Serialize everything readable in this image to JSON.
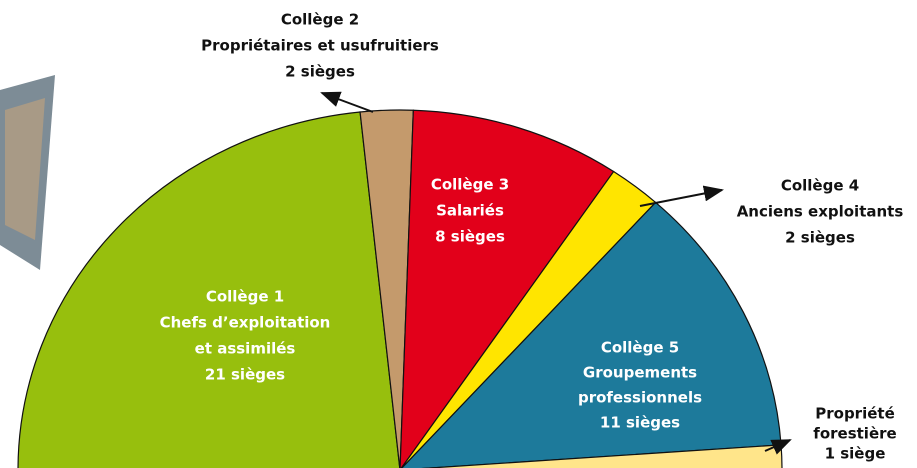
{
  "chart_data": {
    "type": "semi-pie",
    "labels": [
      [
        "Collège 1",
        "Chefs d’exploitation",
        "et assimilés"
      ],
      [
        "Collège 2",
        "Propriétaires et usufruitiers"
      ],
      [
        "Collège 3",
        "Salariés"
      ],
      [
        "Collège 4",
        "Anciens exploitants"
      ],
      [
        "Collège 5",
        "Groupements",
        "professionnels"
      ],
      [
        "Propriété",
        "forestière"
      ]
    ],
    "values": [
      21,
      2,
      8,
      2,
      11,
      1
    ],
    "value_labels": [
      "21 sièges",
      "2 sièges",
      "8 sièges",
      "2 sièges",
      "11 sièges",
      "1 siège"
    ],
    "colors": [
      "#97bf0d",
      "#c49a6c",
      "#e2001a",
      "#ffe500",
      "#1d7a9b",
      "#ffe58a"
    ]
  }
}
